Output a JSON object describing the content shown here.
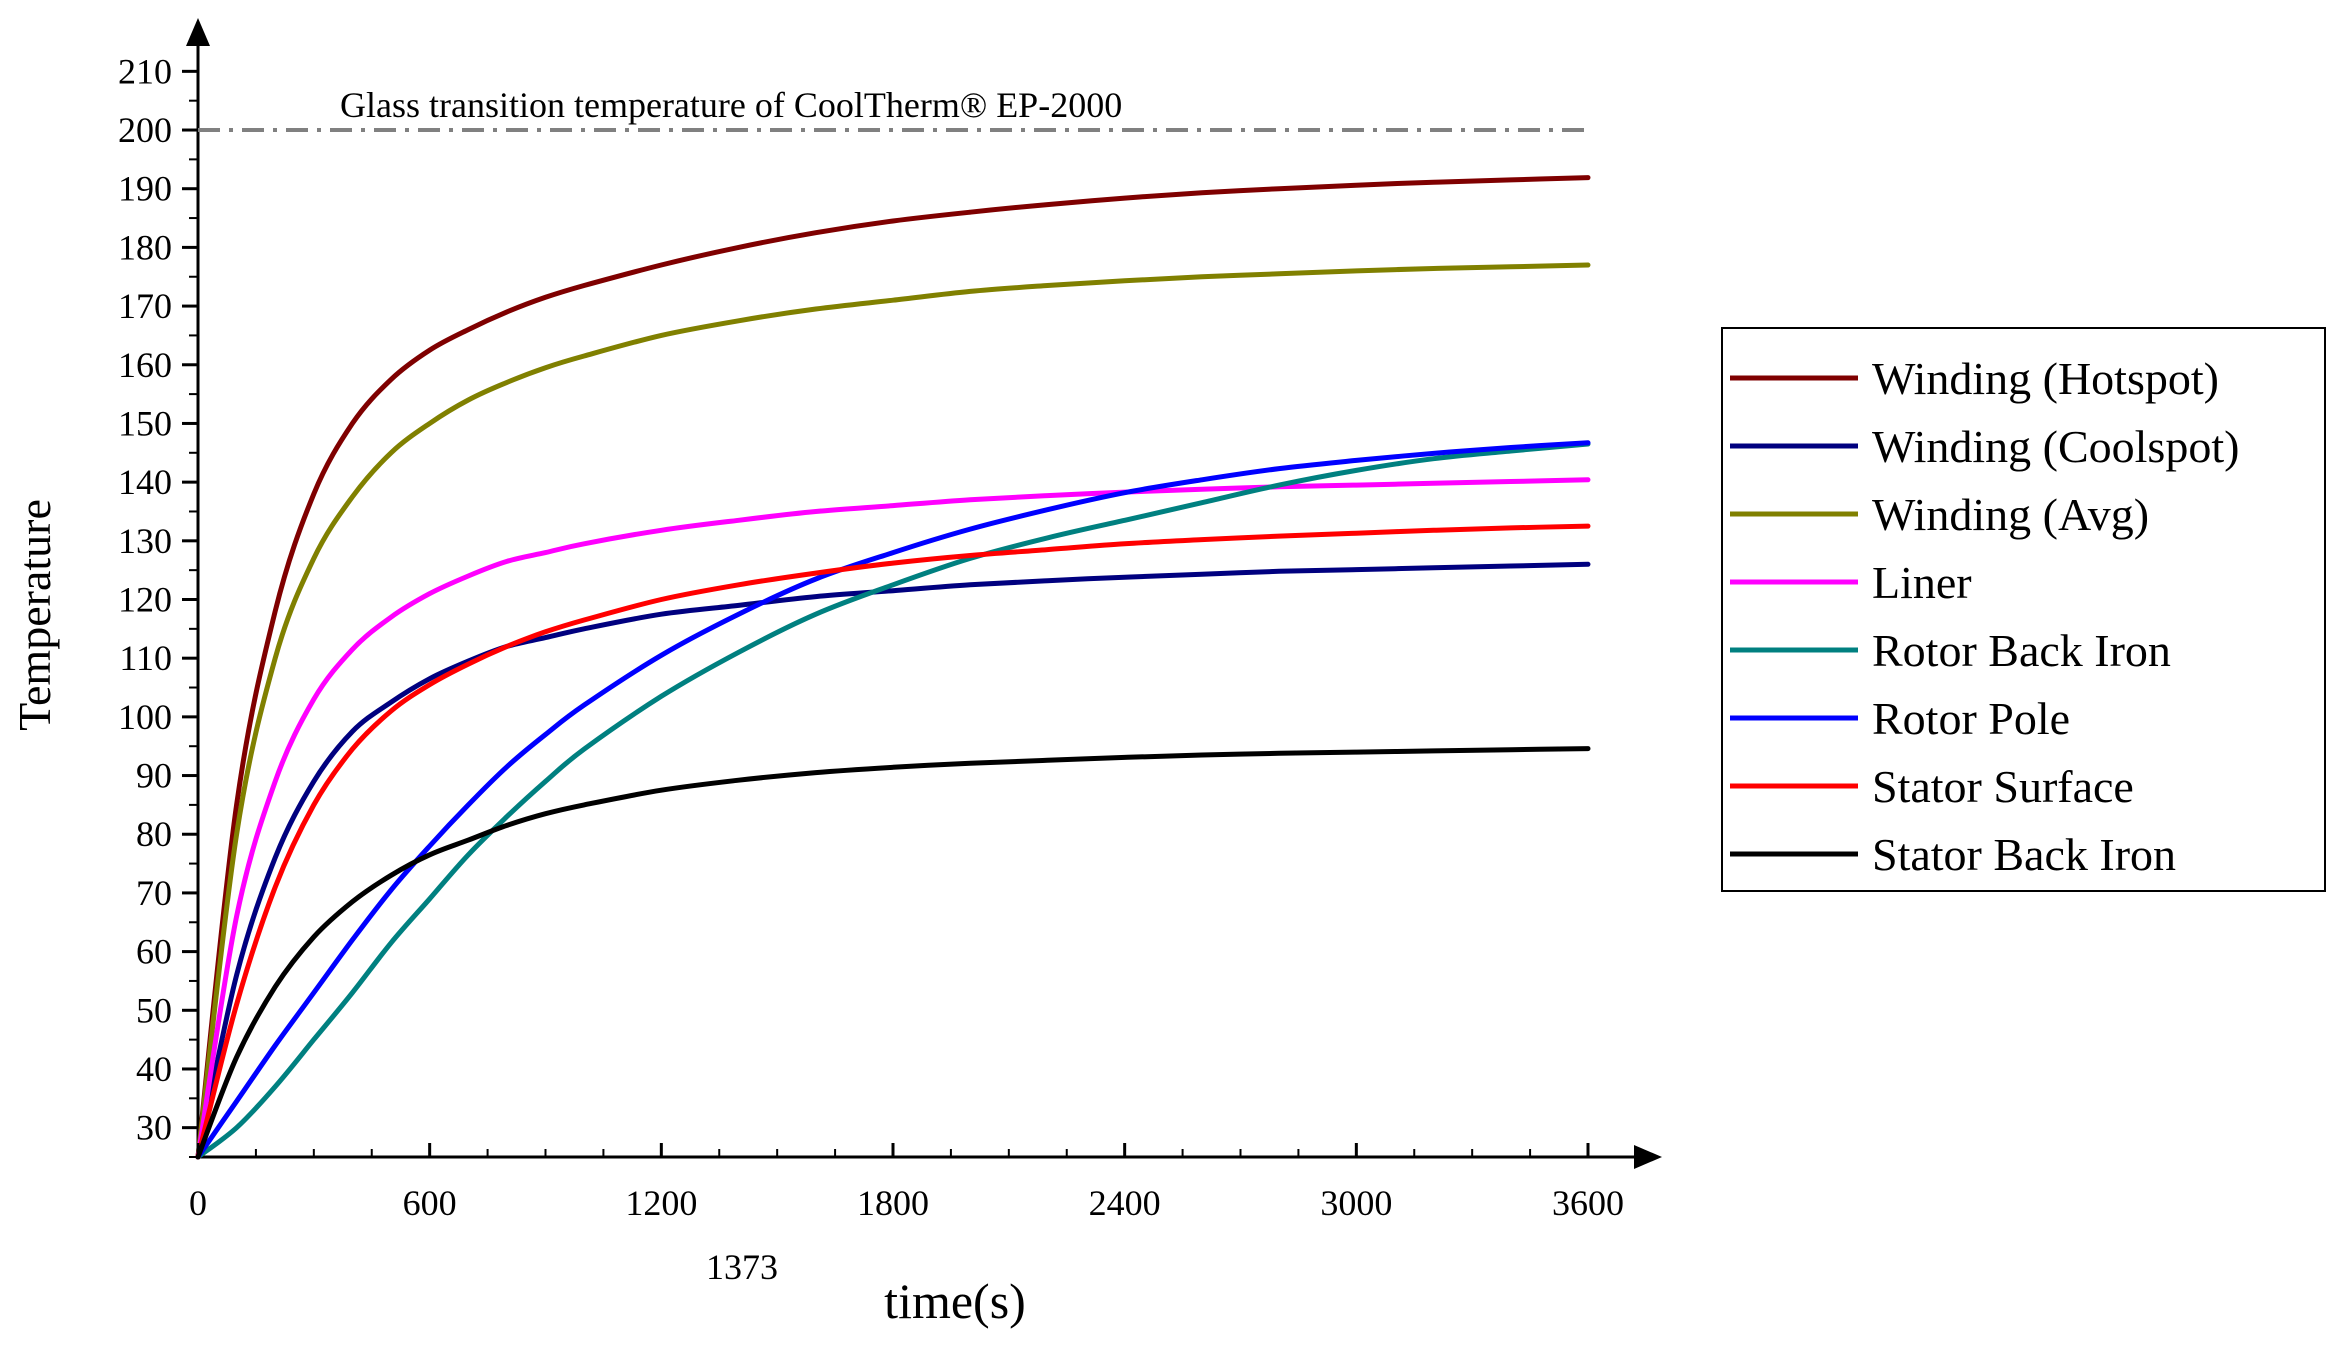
{
  "chart_data": {
    "type": "line",
    "title": "",
    "xlabel": "time(s)",
    "ylabel": "Temperature",
    "xlim": [
      0,
      3600
    ],
    "ylim": [
      25,
      215
    ],
    "x_ticks": [
      "0",
      "600",
      "1200",
      "1800",
      "2400",
      "3000",
      "3600"
    ],
    "y_ticks": [
      "30",
      "40",
      "50",
      "60",
      "70",
      "80",
      "90",
      "100",
      "110",
      "120",
      "130",
      "140",
      "150",
      "160",
      "170",
      "180",
      "190",
      "200",
      "210"
    ],
    "extra_x_label": "1373",
    "grid": false,
    "legend_position": "right",
    "reference_line": {
      "y": 200,
      "label": "Glass transition temperature of CoolTherm® EP-2000",
      "color": "#808080",
      "style": "dash-dot"
    },
    "x": [
      0,
      100,
      200,
      300,
      400,
      500,
      600,
      700,
      800,
      900,
      1000,
      1200,
      1400,
      1600,
      1800,
      2000,
      2200,
      2400,
      2600,
      2800,
      3000,
      3200,
      3400,
      3600
    ],
    "series": [
      {
        "name": "Winding (Hotspot)",
        "color": "#7f0000",
        "values": [
          25,
          85,
          118,
          138,
          150,
          157.5,
          162.5,
          166,
          169,
          171.5,
          173.5,
          177,
          180,
          182.5,
          184.5,
          186,
          187.3,
          188.4,
          189.3,
          190,
          190.6,
          191.1,
          191.5,
          191.9
        ]
      },
      {
        "name": "Winding (Coolspot)",
        "color": "#00007f",
        "values": [
          25,
          56,
          76,
          89,
          97.5,
          102.5,
          106.5,
          109.5,
          112,
          113.5,
          115,
          117.5,
          119,
          120.5,
          121.5,
          122.5,
          123.2,
          123.8,
          124.3,
          124.8,
          125.1,
          125.4,
          125.7,
          126
        ]
      },
      {
        "name": "Winding (Avg)",
        "color": "#808000",
        "values": [
          25,
          80,
          110,
          127,
          137.5,
          145,
          150,
          154,
          157,
          159.5,
          161.5,
          165,
          167.5,
          169.5,
          171,
          172.5,
          173.5,
          174.3,
          175,
          175.5,
          176,
          176.4,
          176.7,
          177
        ]
      },
      {
        "name": "Liner",
        "color": "#ff00ff",
        "values": [
          25,
          66,
          89,
          103,
          111.5,
          117,
          121,
          124,
          126.5,
          128,
          129.5,
          131.8,
          133.5,
          135,
          136,
          137,
          137.7,
          138.3,
          138.8,
          139.2,
          139.5,
          139.8,
          140.1,
          140.4
        ]
      },
      {
        "name": "Rotor Back Iron",
        "color": "#008080",
        "values": [
          25,
          30,
          37,
          45,
          53,
          61.5,
          69,
          76.5,
          83,
          89,
          94.5,
          103.5,
          111,
          117.5,
          122.5,
          127,
          130.5,
          133.5,
          136.5,
          139.5,
          142,
          144,
          145.3,
          146.5
        ]
      },
      {
        "name": "Rotor Pole",
        "color": "#0000ff",
        "values": [
          25,
          34.5,
          44,
          53,
          62,
          70.5,
          78,
          85,
          91.5,
          97,
          102,
          110.5,
          117.5,
          123.5,
          128,
          132,
          135.3,
          138.2,
          140.4,
          142.3,
          143.7,
          144.9,
          145.9,
          146.7
        ]
      },
      {
        "name": "Stator Surface",
        "color": "#ff0000",
        "values": [
          25,
          51,
          71,
          85,
          94.5,
          101,
          105.5,
          109,
          112,
          114.5,
          116.5,
          120,
          122.5,
          124.5,
          126.2,
          127.5,
          128.5,
          129.5,
          130.2,
          130.8,
          131.3,
          131.8,
          132.2,
          132.5
        ]
      },
      {
        "name": "Stator Back Iron",
        "color": "#000000",
        "values": [
          25,
          42,
          54,
          62.5,
          68.5,
          73,
          76.5,
          79,
          81.5,
          83.5,
          85,
          87.5,
          89.2,
          90.5,
          91.4,
          92.1,
          92.6,
          93.1,
          93.5,
          93.8,
          94,
          94.2,
          94.4,
          94.6
        ]
      }
    ]
  }
}
